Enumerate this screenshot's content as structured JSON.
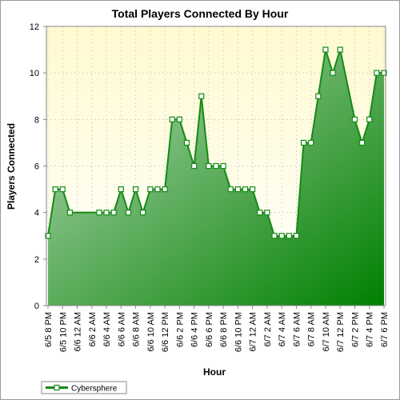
{
  "chart_data": {
    "type": "area",
    "title": "Total Players Connected By Hour",
    "xlabel": "Hour",
    "ylabel": "Players Connected",
    "ylim": [
      0,
      12
    ],
    "yticks": [
      0,
      2,
      4,
      6,
      8,
      10,
      12
    ],
    "grid": true,
    "legend_position": "bottom-left",
    "colors": {
      "line": "#158a15",
      "fill_light": "#b8d9b8",
      "fill_dark": "#008000",
      "plot_bg_top": "#fffad0",
      "plot_bg_bottom": "#ffffff",
      "marker_fill": "#ffffff"
    },
    "x_tick_labels": [
      "6/5 8 PM",
      "6/5 10 PM",
      "6/6 12 AM",
      "6/6 2 AM",
      "6/6 4 AM",
      "6/6 6 AM",
      "6/6 8 AM",
      "6/6 10 AM",
      "6/6 12 PM",
      "6/6 2 PM",
      "6/6 4 PM",
      "6/6 6 PM",
      "6/6 8 PM",
      "6/6 10 PM",
      "6/7 12 AM",
      "6/7 2 AM",
      "6/7 4 AM",
      "6/7 6 AM",
      "6/7 8 AM",
      "6/7 10 AM",
      "6/7 12 PM",
      "6/7 2 PM",
      "6/7 4 PM",
      "6/7 6 PM"
    ],
    "series": [
      {
        "name": "Cybersphere",
        "values": [
          3,
          5,
          5,
          4,
          null,
          null,
          null,
          4,
          4,
          4,
          5,
          4,
          5,
          4,
          5,
          5,
          5,
          8,
          8,
          7,
          6,
          9,
          6,
          6,
          6,
          5,
          5,
          5,
          5,
          4,
          4,
          3,
          3,
          3,
          3,
          7,
          7,
          9,
          11,
          10,
          11,
          null,
          8,
          7,
          8,
          10,
          10
        ]
      }
    ]
  }
}
